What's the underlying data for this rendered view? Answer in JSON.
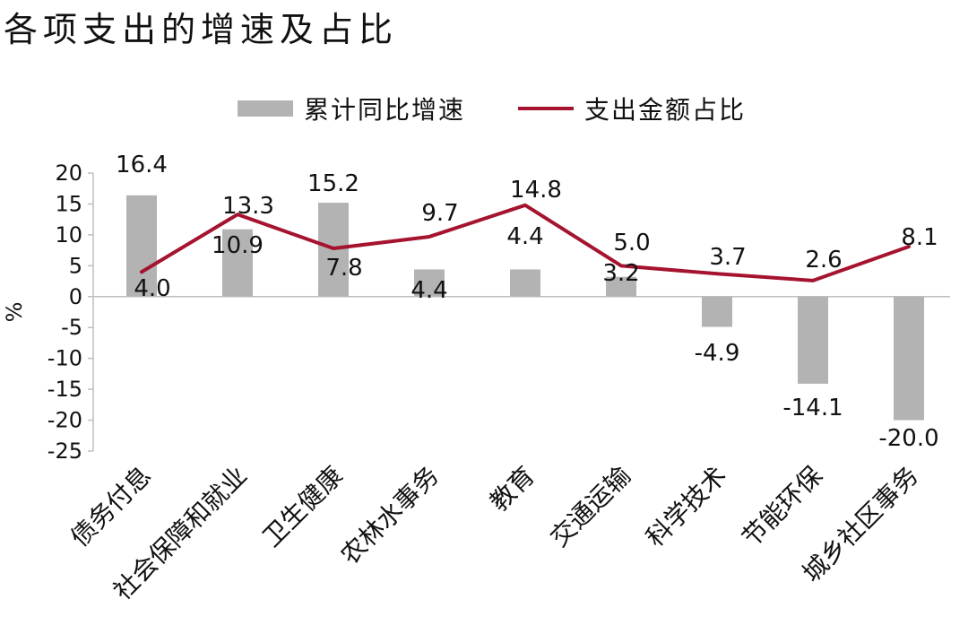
{
  "title": "各项支出的增速及占比",
  "chart_data": {
    "type": "bar",
    "title": "各项支出的增速及占比",
    "categories": [
      "债务付息",
      "社会保障和就业",
      "卫生健康",
      "农林水事务",
      "教育",
      "交通运输",
      "科学技术",
      "节能环保",
      "城乡社区事务"
    ],
    "series": [
      {
        "name": "累计同比增速",
        "type": "bar",
        "color": "#b3b3b3",
        "values": [
          16.4,
          10.9,
          15.2,
          4.4,
          4.4,
          3.2,
          -4.9,
          -14.1,
          -20.0
        ],
        "labels": [
          "16.4",
          "10.9",
          "15.2",
          "4.4",
          "4.4",
          "3.2",
          "-4.9",
          "-14.1",
          "-20.0"
        ]
      },
      {
        "name": "支出金额占比",
        "type": "line",
        "color": "#a5132f",
        "values": [
          4.0,
          13.3,
          7.8,
          9.7,
          14.8,
          5.0,
          3.7,
          2.6,
          8.1
        ],
        "labels": [
          "4.0",
          "13.3",
          "7.8",
          "9.7",
          "14.8",
          "5.0",
          "3.7",
          "2.6",
          "8.1"
        ]
      }
    ],
    "ylabel": "%",
    "ylim": [
      -25,
      20
    ],
    "yticks": [
      "20",
      "15",
      "10",
      "5",
      "0",
      "-5",
      "-10",
      "-15",
      "-20",
      "-25"
    ],
    "ytick_values": [
      20,
      15,
      10,
      5,
      0,
      -5,
      -10,
      -15,
      -20,
      -25
    ],
    "legend_position": "top",
    "grid": false
  }
}
